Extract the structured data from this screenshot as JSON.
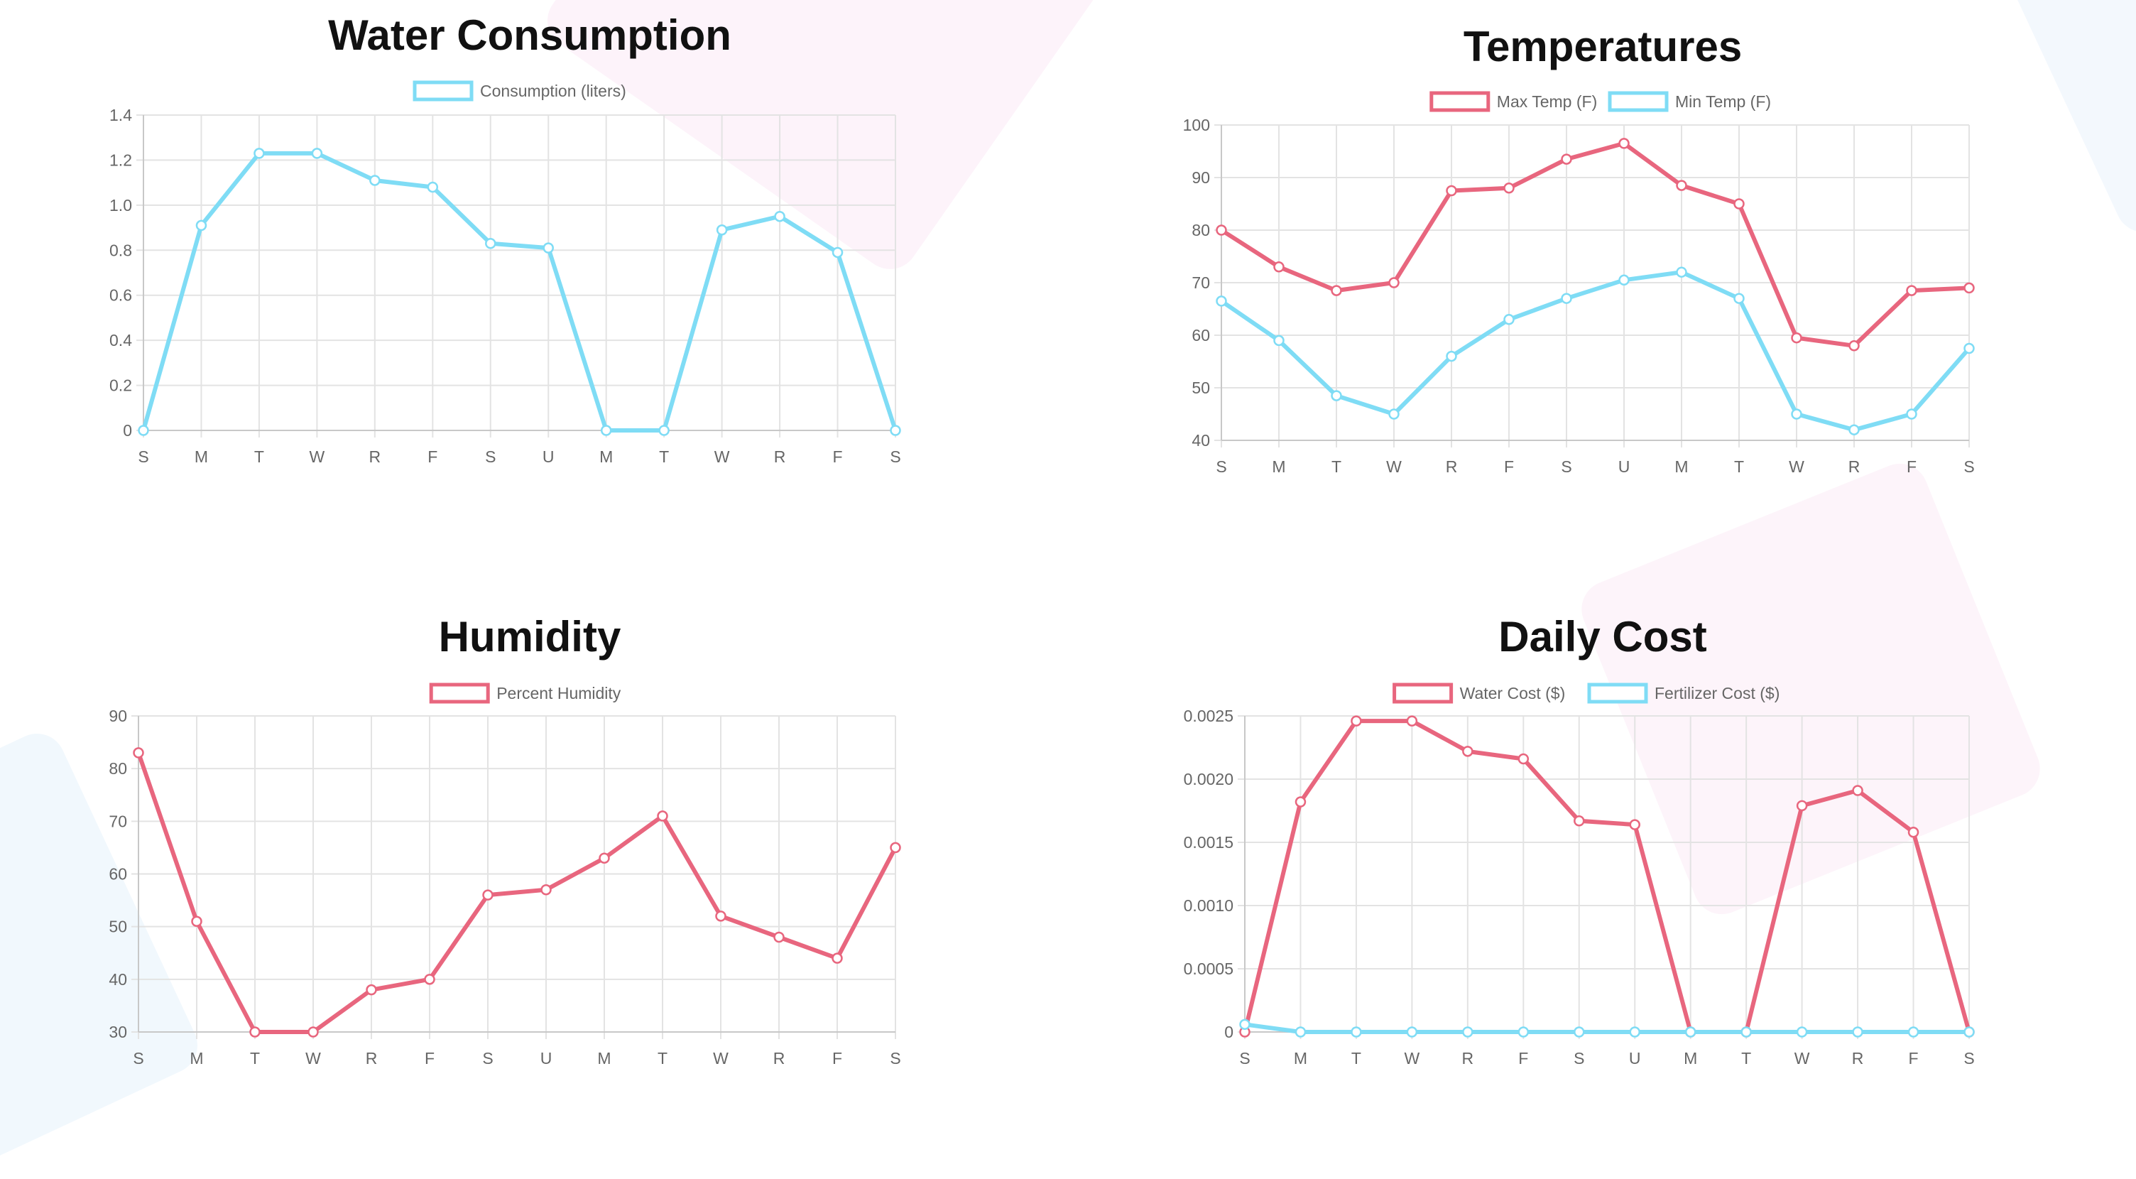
{
  "chart_data": [
    {
      "type": "line",
      "title": "Water Consumption",
      "categories": [
        "S",
        "M",
        "T",
        "W",
        "R",
        "F",
        "S",
        "U",
        "M",
        "T",
        "W",
        "R",
        "F",
        "S"
      ],
      "y_ticks": [
        "0",
        "0.2",
        "0.4",
        "0.6",
        "0.8",
        "1.0",
        "1.2",
        "1.4"
      ],
      "ylim": [
        0,
        1.4
      ],
      "grid": true,
      "legend_position": "top",
      "series": [
        {
          "name": "Consumption (liters)",
          "color": "#7fdcf5",
          "values": [
            0,
            0.91,
            1.23,
            1.23,
            1.11,
            1.08,
            0.83,
            0.81,
            0,
            0,
            0.89,
            0.95,
            0.79,
            0
          ]
        }
      ]
    },
    {
      "type": "line",
      "title": "Temperatures",
      "categories": [
        "S",
        "M",
        "T",
        "W",
        "R",
        "F",
        "S",
        "U",
        "M",
        "T",
        "W",
        "R",
        "F",
        "S"
      ],
      "y_ticks": [
        "40",
        "50",
        "60",
        "70",
        "80",
        "90",
        "100"
      ],
      "ylim": [
        40,
        100
      ],
      "grid": true,
      "legend_position": "top",
      "series": [
        {
          "name": "Max Temp (F)",
          "color": "#e8667e",
          "values": [
            80,
            73,
            68.5,
            70,
            87.5,
            88,
            93.5,
            96.5,
            88.5,
            85,
            59.5,
            58,
            68.5,
            69
          ]
        },
        {
          "name": "Min Temp (F)",
          "color": "#7fdcf5",
          "values": [
            66.5,
            59,
            48.5,
            45,
            56,
            63,
            67,
            70.5,
            72,
            67,
            45,
            42,
            45,
            57.5
          ]
        }
      ]
    },
    {
      "type": "line",
      "title": "Humidity",
      "categories": [
        "S",
        "M",
        "T",
        "W",
        "R",
        "F",
        "S",
        "U",
        "M",
        "T",
        "W",
        "R",
        "F",
        "S"
      ],
      "y_ticks": [
        "30",
        "40",
        "50",
        "60",
        "70",
        "80",
        "90"
      ],
      "ylim": [
        30,
        90
      ],
      "grid": true,
      "legend_position": "top",
      "series": [
        {
          "name": "Percent Humidity",
          "color": "#e8667e",
          "values": [
            83,
            51,
            30,
            30,
            38,
            40,
            56,
            57,
            63,
            71,
            52,
            48,
            44,
            65
          ]
        }
      ]
    },
    {
      "type": "line",
      "title": "Daily Cost",
      "categories": [
        "S",
        "M",
        "T",
        "W",
        "R",
        "F",
        "S",
        "U",
        "M",
        "T",
        "W",
        "R",
        "F",
        "S"
      ],
      "y_ticks": [
        "0",
        "0.0005",
        "0.0010",
        "0.0015",
        "0.0020",
        "0.0025"
      ],
      "ylim": [
        0,
        0.0025
      ],
      "grid": true,
      "legend_position": "top",
      "series": [
        {
          "name": "Water Cost ($)",
          "color": "#e8667e",
          "values": [
            0,
            0.00182,
            0.00246,
            0.00246,
            0.00222,
            0.00216,
            0.00167,
            0.00164,
            0,
            0,
            0.00179,
            0.00191,
            0.00158,
            0
          ]
        },
        {
          "name": "Fertilizer Cost ($)",
          "color": "#7fdcf5",
          "values": [
            6e-05,
            0,
            0,
            0,
            0,
            0,
            0,
            0,
            0,
            0,
            0,
            0,
            0,
            0
          ]
        }
      ]
    }
  ]
}
